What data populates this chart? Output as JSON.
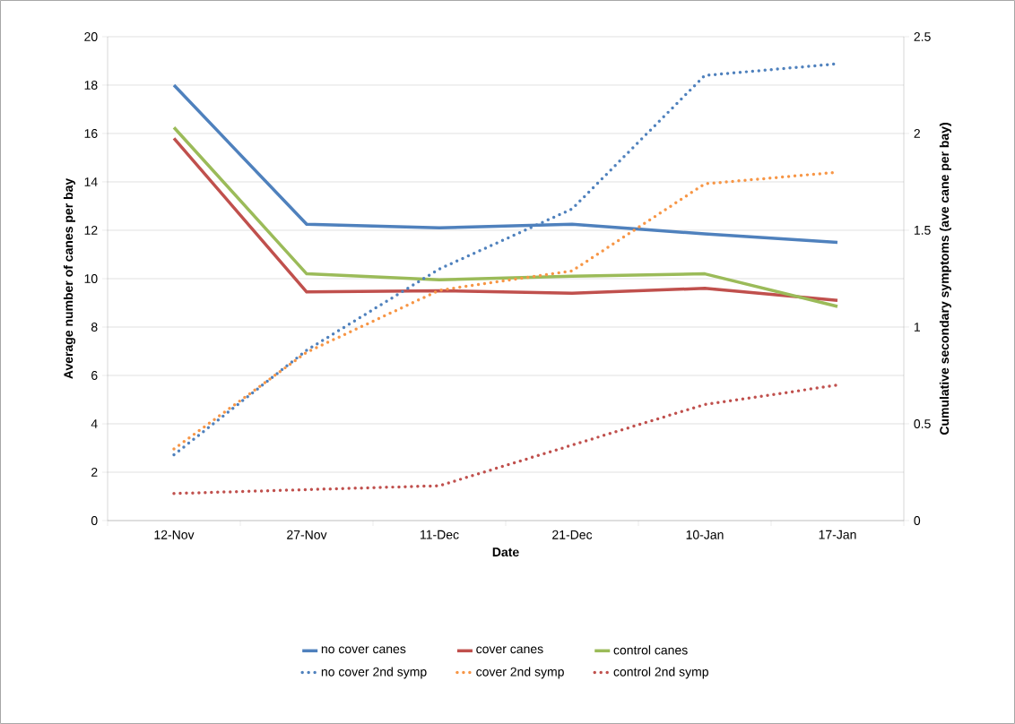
{
  "chart_data": {
    "type": "line",
    "xlabel": "Date",
    "ylabel": "Average number of canes per bay",
    "y2label": "Cumulative secondary symptoms (ave cane per bay)",
    "categories": [
      "12-Nov",
      "27-Nov",
      "11-Dec",
      "21-Dec",
      "10-Jan",
      "17-Jan"
    ],
    "ylim": [
      0,
      20
    ],
    "yticks": [
      0,
      2,
      4,
      6,
      8,
      10,
      12,
      14,
      16,
      18,
      20
    ],
    "y2lim": [
      0,
      2.5
    ],
    "y2ticks": [
      0,
      0.5,
      1,
      1.5,
      2,
      2.5
    ],
    "grid": "y",
    "legend": "bottom",
    "marker": "none",
    "series": [
      {
        "name": "no cover canes",
        "color": "#4f81bd",
        "line_style": "solid",
        "values": [
          18,
          12.25,
          12.1,
          12.25,
          11.85,
          11.5
        ]
      },
      {
        "name": "cover canes",
        "color": "#c0504d",
        "line_style": "solid",
        "values": [
          15.8,
          9.45,
          9.5,
          9.4,
          9.6,
          9.1
        ]
      },
      {
        "name": "control canes",
        "color": "#9bbb59",
        "line_style": "solid",
        "values": [
          16.25,
          10.2,
          9.95,
          10.1,
          10.2,
          8.85
        ]
      },
      {
        "name": "no cover 2nd symp",
        "color": "#4f81bd",
        "line_style": "dotted",
        "axis": "y2",
        "values": [
          0.34,
          0.88,
          1.3,
          1.61,
          2.3,
          2.36
        ]
      },
      {
        "name": "cover 2nd symp",
        "color": "#f79646",
        "line_style": "dotted",
        "axis": "y2",
        "values": [
          0.37,
          0.87,
          1.19,
          1.29,
          1.74,
          1.8
        ]
      },
      {
        "name": "control 2nd symp",
        "color": "#c0504d",
        "line_style": "dotted",
        "axis": "y2",
        "values": [
          0.14,
          0.16,
          0.18,
          0.39,
          0.6,
          0.7
        ]
      }
    ]
  }
}
